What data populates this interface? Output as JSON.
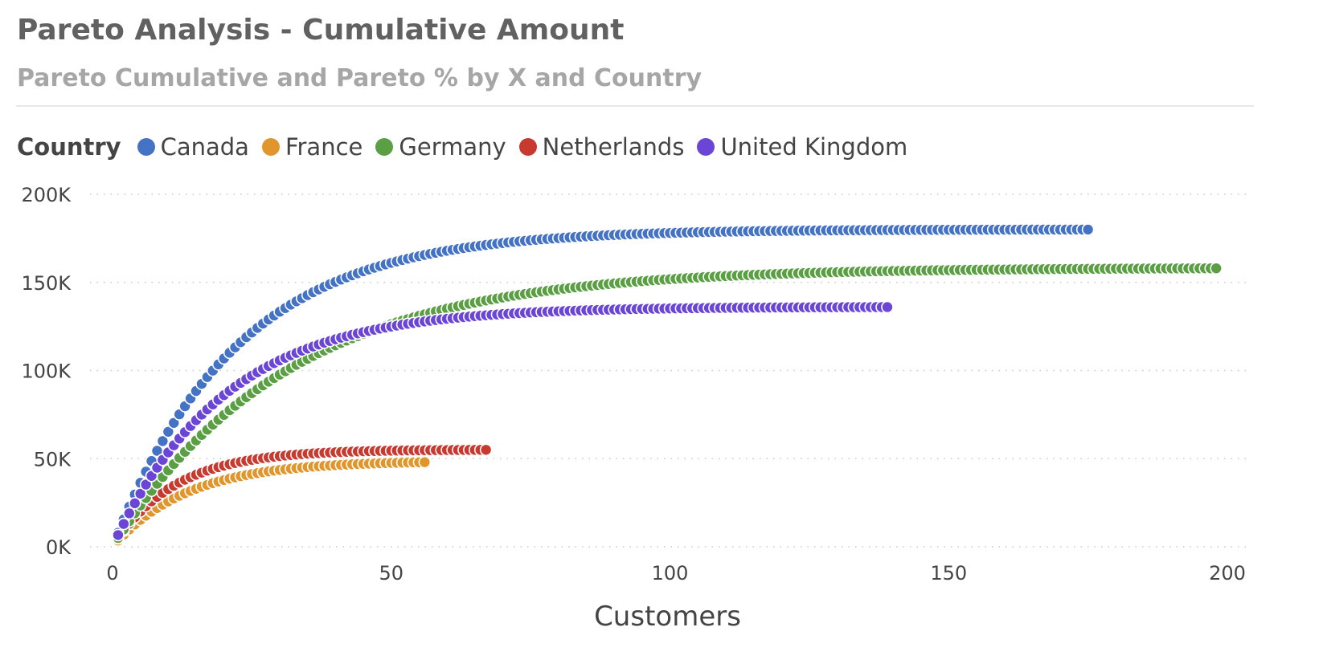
{
  "header": {
    "title": "Pareto Analysis - Cumulative Amount",
    "subtitle": "Pareto Cumulative and Pareto % by X and Country"
  },
  "legend": {
    "title": "Country",
    "items": [
      {
        "label": "Canada",
        "color": "#4472c4"
      },
      {
        "label": "France",
        "color": "#e0962c"
      },
      {
        "label": "Germany",
        "color": "#5b9f45"
      },
      {
        "label": "Netherlands",
        "color": "#c8392f"
      },
      {
        "label": "United Kingdom",
        "color": "#6b46d6"
      }
    ]
  },
  "chart_data": {
    "type": "scatter",
    "title": "Pareto Analysis - Cumulative Amount",
    "subtitle": "Pareto Cumulative and Pareto % by X and Country",
    "xlabel": "Customers",
    "ylabel": "",
    "xlim": [
      0,
      200
    ],
    "ylim": [
      0,
      200000
    ],
    "x_ticks": [
      0,
      50,
      100,
      150,
      200
    ],
    "y_ticks": [
      0,
      50000,
      100000,
      150000,
      200000
    ],
    "y_tick_labels": [
      "0K",
      "50K",
      "100K",
      "150K",
      "200K"
    ],
    "grid": "horizontal dotted",
    "legend_position": "top-left",
    "series": [
      {
        "name": "Canada",
        "color": "#4472c4",
        "n_points": 175,
        "final_x": 175,
        "final_y": 180000,
        "curve_rate": 0.045
      },
      {
        "name": "France",
        "color": "#e0962c",
        "n_points": 56,
        "final_x": 56,
        "final_y": 48000,
        "curve_rate": 0.075
      },
      {
        "name": "Germany",
        "color": "#5b9f45",
        "n_points": 198,
        "final_x": 198,
        "final_y": 158000,
        "curve_rate": 0.032
      },
      {
        "name": "Netherlands",
        "color": "#c8392f",
        "n_points": 67,
        "final_x": 67,
        "final_y": 55000,
        "curve_rate": 0.09
      },
      {
        "name": "United Kingdom",
        "color": "#6b46d6",
        "n_points": 139,
        "final_x": 139,
        "final_y": 136000,
        "curve_rate": 0.05
      }
    ]
  }
}
